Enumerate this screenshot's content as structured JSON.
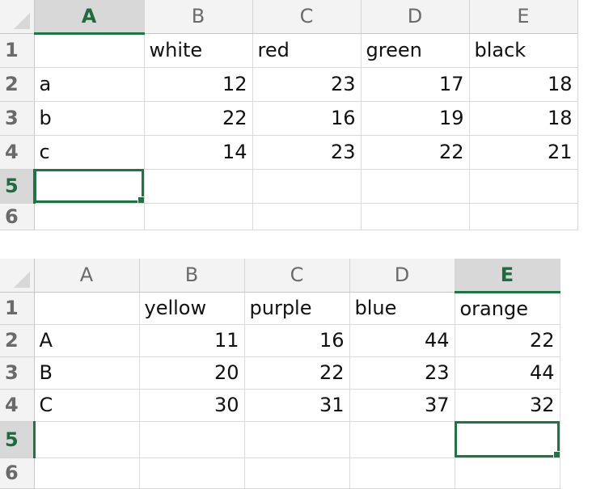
{
  "colors": {
    "accent": "#217346",
    "header_bg": "#f3f3f3",
    "header_selected_bg": "#d8d8d8",
    "gridline": "#d9d9d9"
  },
  "sheet1": {
    "columns": [
      "A",
      "B",
      "C",
      "D",
      "E"
    ],
    "rows": [
      "1",
      "2",
      "3",
      "4",
      "5",
      "6"
    ],
    "selected_column": "A",
    "selected_row": "5",
    "cells": [
      [
        "",
        "white",
        "red",
        "green",
        "black"
      ],
      [
        "a",
        "12",
        "23",
        "17",
        "18"
      ],
      [
        "b",
        "22",
        "16",
        "19",
        "18"
      ],
      [
        "c",
        "14",
        "23",
        "22",
        "21"
      ],
      [
        "",
        "",
        "",
        "",
        ""
      ],
      [
        "",
        "",
        "",
        "",
        ""
      ]
    ]
  },
  "sheet2": {
    "columns": [
      "A",
      "B",
      "C",
      "D",
      "E"
    ],
    "rows": [
      "1",
      "2",
      "3",
      "4",
      "5",
      "6"
    ],
    "selected_column": "E",
    "selected_row": "5",
    "cells": [
      [
        "",
        "yellow",
        "purple",
        "blue",
        "orange"
      ],
      [
        "A",
        "11",
        "16",
        "44",
        "22"
      ],
      [
        "B",
        "20",
        "22",
        "23",
        "44"
      ],
      [
        "C",
        "30",
        "31",
        "37",
        "32"
      ],
      [
        "",
        "",
        "",
        "",
        ""
      ],
      [
        "",
        "",
        "",
        "",
        ""
      ]
    ]
  }
}
